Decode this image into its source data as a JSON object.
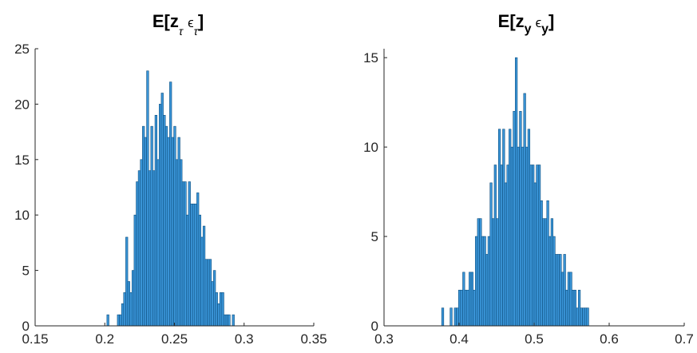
{
  "chart_data": [
    {
      "type": "bar",
      "title": "E[zτ ϵτ]",
      "title_parts": {
        "main": "E[z",
        "sub1": "τ",
        "eps": "ϵ",
        "sub2": "τ",
        "close": "]"
      },
      "xlim": [
        0.15,
        0.35
      ],
      "ylim": [
        0,
        25
      ],
      "xticks": [
        "0.15",
        "0.2",
        "0.25",
        "0.3",
        "0.35"
      ],
      "yticks": [
        "0",
        "5",
        "10",
        "15",
        "20",
        "25"
      ],
      "bin_start": 0.185,
      "bin_width": 0.0015,
      "values": [
        0,
        0,
        0,
        0,
        0,
        0,
        0,
        0,
        0,
        0,
        0,
        1,
        0,
        0,
        0,
        0,
        1,
        1,
        2,
        3,
        8,
        4,
        3,
        5,
        10,
        13,
        14,
        15,
        18,
        17,
        23,
        14,
        18,
        14,
        19,
        15,
        20,
        21,
        19,
        18,
        17,
        22,
        17,
        18,
        15,
        17,
        15,
        13,
        13,
        10,
        13,
        11,
        11,
        11,
        12,
        10,
        8,
        9,
        6,
        6,
        6,
        4,
        5,
        3,
        2,
        3,
        3,
        1,
        1,
        1,
        0,
        1,
        0,
        0,
        0,
        0,
        0,
        0,
        0,
        0,
        0,
        0,
        0,
        0
      ],
      "bar_color": "#3a95d8",
      "edge_color": "#0e4f7f"
    },
    {
      "type": "bar",
      "title": "E[zy ϵy]",
      "title_parts": {
        "main": "E[z",
        "sub1": "y",
        "eps": "ϵ",
        "sub2": "y",
        "close": "]"
      },
      "xlim": [
        0.3,
        0.7
      ],
      "ylim": [
        0,
        15.5
      ],
      "xticks": [
        "0.3",
        "0.4",
        "0.5",
        "0.6",
        "0.7"
      ],
      "yticks": [
        "0",
        "5",
        "10",
        "15"
      ],
      "bin_start": 0.36,
      "bin_width": 0.0028,
      "values": [
        0,
        0,
        0,
        0,
        0,
        0,
        1,
        0,
        0,
        0,
        1,
        0,
        1,
        1,
        2,
        2,
        3,
        2,
        2,
        3,
        3,
        2,
        5,
        6,
        6,
        5,
        5,
        4,
        5,
        8,
        6,
        9,
        6,
        11,
        9,
        11,
        8,
        9,
        11,
        10,
        12,
        15,
        10,
        12,
        10,
        13,
        10,
        11,
        9,
        9,
        8,
        9,
        9,
        7,
        6,
        6,
        7,
        5,
        6,
        5,
        4,
        4,
        4,
        3,
        4,
        2,
        3,
        3,
        2,
        2,
        1,
        2,
        1,
        1,
        1,
        1,
        0,
        0,
        0,
        0,
        0,
        0,
        0,
        0,
        0,
        0,
        0,
        0,
        0,
        0,
        0,
        0,
        0,
        0,
        0,
        0,
        0,
        0,
        0,
        0,
        0,
        0,
        0,
        0,
        0,
        0,
        0,
        0,
        0,
        0,
        0,
        0,
        0,
        0,
        0,
        0,
        0,
        0,
        0,
        0,
        0,
        0,
        0,
        0,
        0,
        0,
        0,
        0,
        0,
        0
      ],
      "bar_color": "#3a95d8",
      "edge_color": "#0e4f7f"
    }
  ]
}
